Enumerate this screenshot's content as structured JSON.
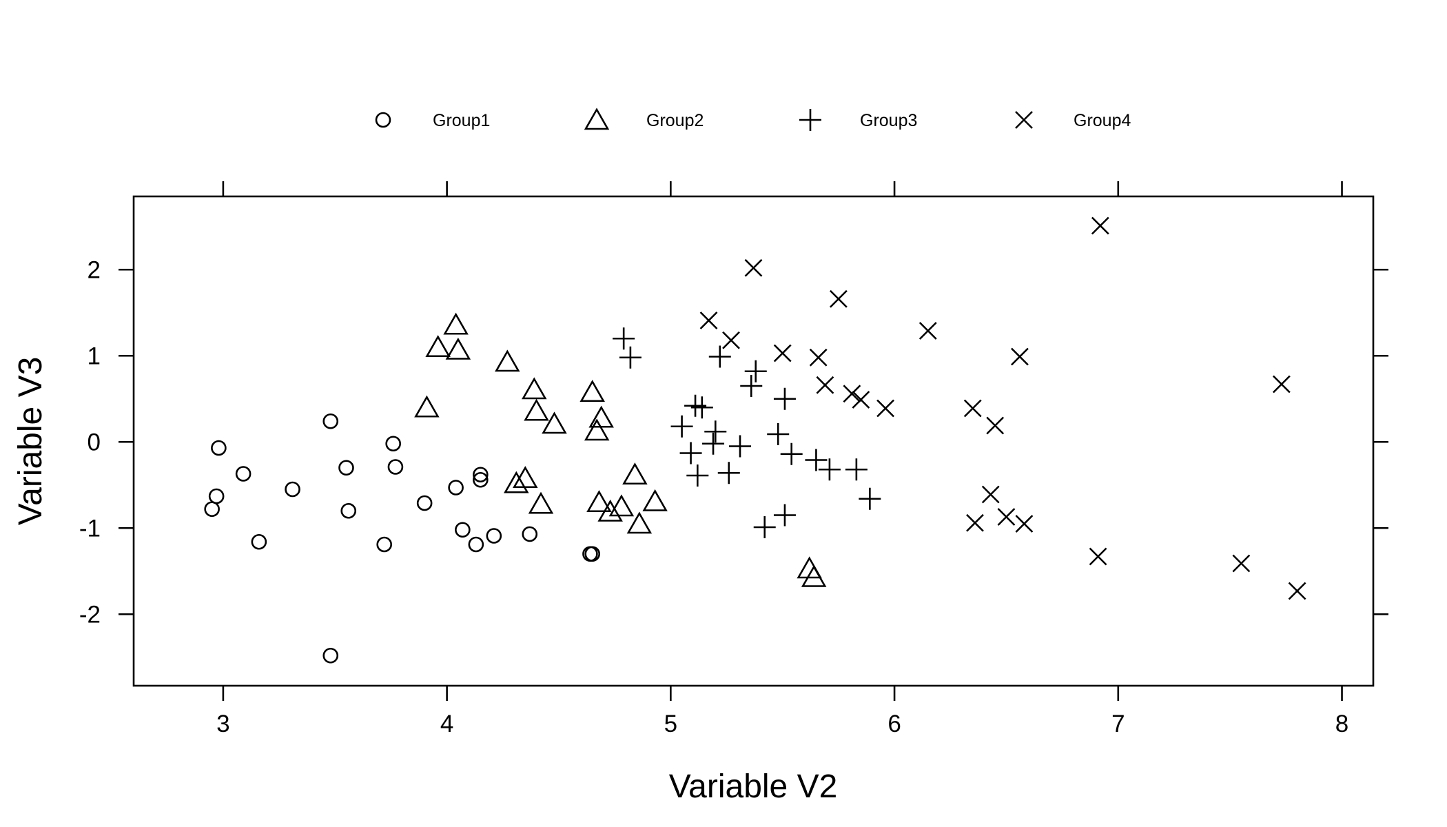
{
  "chart_data": {
    "type": "scatter",
    "xlabel": "Variable V2",
    "ylabel": "Variable V3",
    "xlim": [
      2.6,
      8.14
    ],
    "ylim": [
      -2.83,
      2.85
    ],
    "x_ticks": [
      3,
      4,
      5,
      6,
      7,
      8
    ],
    "y_ticks": [
      -2,
      -1,
      0,
      1,
      2
    ],
    "grid": false,
    "legend_position": "top",
    "series": [
      {
        "name": "Group1",
        "marker": "circle",
        "x": [
          2.95,
          2.97,
          2.98,
          3.09,
          3.16,
          3.31,
          3.48,
          3.48,
          3.55,
          3.56,
          3.72,
          3.76,
          3.77,
          3.9,
          4.04,
          4.07,
          4.13,
          4.15,
          4.15,
          4.21,
          4.37,
          4.64,
          4.65
        ],
        "y": [
          -0.78,
          -0.63,
          -0.07,
          -0.37,
          -1.16,
          -0.55,
          0.24,
          -2.48,
          -0.3,
          -0.8,
          -1.19,
          -0.02,
          -0.29,
          -0.71,
          -0.53,
          -1.02,
          -1.19,
          -0.38,
          -0.44,
          -1.09,
          -1.07,
          -1.3,
          -1.3
        ]
      },
      {
        "name": "Group2",
        "marker": "triangle",
        "x": [
          3.91,
          3.96,
          4.04,
          4.05,
          4.27,
          4.31,
          4.35,
          4.39,
          4.4,
          4.42,
          4.48,
          4.65,
          4.67,
          4.68,
          4.69,
          4.73,
          4.78,
          4.84,
          4.86,
          4.93,
          5.62,
          5.64
        ],
        "y": [
          0.4,
          1.1,
          1.36,
          1.07,
          0.93,
          -0.48,
          -0.42,
          0.61,
          0.36,
          -0.72,
          0.21,
          0.58,
          0.13,
          -0.7,
          0.28,
          -0.81,
          -0.75,
          -0.38,
          -0.95,
          -0.69,
          -1.47,
          -1.57
        ]
      },
      {
        "name": "Group3",
        "marker": "plus",
        "x": [
          4.79,
          4.82,
          5.05,
          5.09,
          5.11,
          5.12,
          5.14,
          5.19,
          5.2,
          5.22,
          5.26,
          5.31,
          5.36,
          5.38,
          5.42,
          5.48,
          5.51,
          5.51,
          5.54,
          5.65,
          5.71,
          5.83,
          5.89
        ],
        "y": [
          1.2,
          0.98,
          0.18,
          -0.13,
          0.42,
          -0.39,
          0.4,
          -0.02,
          0.12,
          0.99,
          -0.36,
          -0.05,
          0.65,
          0.82,
          -0.99,
          0.09,
          -0.85,
          0.5,
          -0.14,
          -0.21,
          -0.32,
          -0.32,
          -0.66
        ]
      },
      {
        "name": "Group4",
        "marker": "x",
        "x": [
          5.17,
          5.27,
          5.37,
          5.5,
          5.66,
          5.69,
          5.75,
          5.81,
          5.85,
          5.96,
          6.15,
          6.35,
          6.36,
          6.43,
          6.45,
          6.5,
          6.56,
          6.58,
          6.91,
          6.92,
          7.55,
          7.73,
          7.8
        ],
        "y": [
          1.41,
          1.18,
          2.02,
          1.03,
          0.98,
          0.66,
          1.66,
          0.56,
          0.49,
          0.39,
          1.29,
          0.39,
          -0.94,
          -0.61,
          0.19,
          -0.87,
          0.99,
          -0.95,
          -1.33,
          2.51,
          -1.41,
          0.67,
          -1.73
        ]
      }
    ]
  }
}
